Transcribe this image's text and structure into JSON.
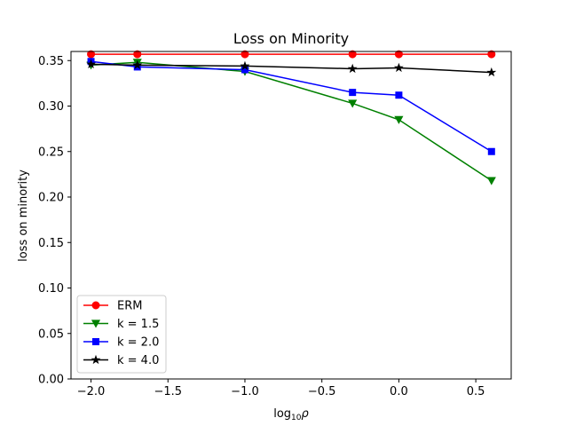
{
  "chart_data": {
    "type": "line",
    "title": "Loss on Minority",
    "xlabel": {
      "prefix": "log",
      "sub": "10",
      "symbol": "ρ"
    },
    "ylabel": "loss on minority",
    "xlim": [
      -2.13,
      0.73
    ],
    "ylim": [
      0.0,
      0.36
    ],
    "xticks": [
      -2.0,
      -1.5,
      -1.0,
      -0.5,
      0.0,
      0.5
    ],
    "xtick_labels": [
      "−2.0",
      "−1.5",
      "−1.0",
      "−0.5",
      "0.0",
      "0.5"
    ],
    "yticks": [
      0.0,
      0.05,
      0.1,
      0.15,
      0.2,
      0.25,
      0.3,
      0.35
    ],
    "ytick_labels": [
      "0.00",
      "0.05",
      "0.10",
      "0.15",
      "0.20",
      "0.25",
      "0.30",
      "0.35"
    ],
    "grid": false,
    "legend_position": "lower-left",
    "x": [
      -2.0,
      -1.699,
      -1.0,
      -0.301,
      0.0,
      0.602
    ],
    "series": [
      {
        "name": "ERM",
        "color": "#ff0000",
        "marker": "circle",
        "values": [
          0.357,
          0.357,
          0.357,
          0.357,
          0.357,
          0.357
        ]
      },
      {
        "name": "k = 1.5",
        "color": "#008000",
        "marker": "triangle-down",
        "values": [
          0.345,
          0.348,
          0.338,
          0.303,
          0.285,
          0.218
        ]
      },
      {
        "name": "k = 2.0",
        "color": "#0000ff",
        "marker": "square",
        "values": [
          0.349,
          0.343,
          0.34,
          0.315,
          0.312,
          0.25
        ]
      },
      {
        "name": "k = 4.0",
        "color": "#000000",
        "marker": "star",
        "values": [
          0.346,
          0.345,
          0.344,
          0.341,
          0.342,
          0.337
        ]
      }
    ]
  }
}
